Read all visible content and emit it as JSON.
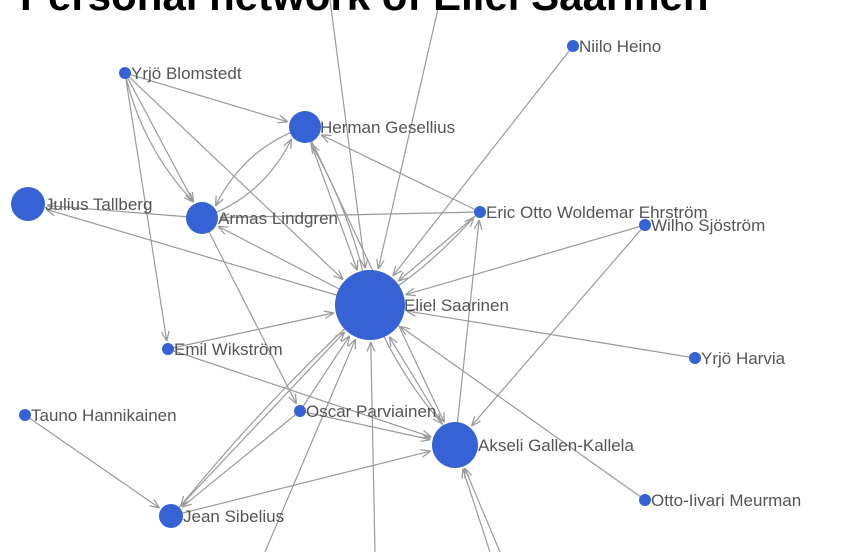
{
  "title": "Personal network of Eliel Saarinen",
  "nodes": [
    {
      "label": "Eliel Saarinen"
    },
    {
      "label": "Akseli Gallen-Kallela"
    },
    {
      "label": "Herman Gesellius"
    },
    {
      "label": "Julius Tallberg"
    },
    {
      "label": "Armas Lindgren"
    },
    {
      "label": "Jean Sibelius"
    },
    {
      "label": "Yrjö Blomstedt"
    },
    {
      "label": "Niilo Heino"
    },
    {
      "label": "Eric Otto Woldemar Ehrström"
    },
    {
      "label": "Wilho Sjöström"
    },
    {
      "label": "Emil Wikström"
    },
    {
      "label": "Tauno Hannikainen"
    },
    {
      "label": "Oscar Parviainen"
    },
    {
      "label": "Yrjö Harvia"
    },
    {
      "label": "Otto-Iivari Meurman"
    }
  ]
}
